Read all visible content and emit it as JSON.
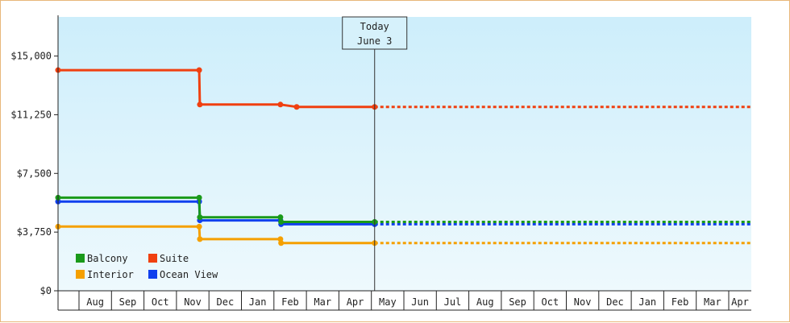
{
  "chart_data": {
    "type": "line",
    "title": "",
    "xlabel": "",
    "ylabel": "",
    "ylim": [
      0,
      17500
    ],
    "y_ticks": [
      0,
      3750,
      7500,
      11250,
      15000
    ],
    "y_tick_labels": [
      "$0",
      "$3,750",
      "$7,500",
      "$11,250",
      "$15,000"
    ],
    "x_ticks": [
      "Aug",
      "Sep",
      "Oct",
      "Nov",
      "Dec",
      "Jan",
      "Feb",
      "Mar",
      "Apr",
      "May",
      "Jun",
      "Jul",
      "Aug",
      "Sep",
      "Oct",
      "Nov",
      "Dec",
      "Jan",
      "Feb",
      "Mar",
      "Apr"
    ],
    "step": true,
    "today": {
      "line1": "Today",
      "line2": "June 3",
      "month_index": 9.1
    },
    "background": {
      "top": "#cdeefb",
      "bottom": "#eef9fd"
    },
    "legend": {
      "placement": "bottom-left",
      "columns": 2
    },
    "series": [
      {
        "name": "Balcony",
        "color": "#1a9a1a",
        "points": [
          [
            -1.0,
            5950
          ],
          [
            3.7,
            5950
          ],
          [
            3.72,
            4700
          ],
          [
            6.2,
            4700
          ],
          [
            6.22,
            4400
          ],
          [
            9.1,
            4400
          ]
        ],
        "projected_value": 4400
      },
      {
        "name": "Suite",
        "color": "#f04010",
        "points": [
          [
            -1.0,
            14100
          ],
          [
            3.7,
            14100
          ],
          [
            3.72,
            11900
          ],
          [
            6.2,
            11900
          ],
          [
            6.7,
            11750
          ],
          [
            9.1,
            11750
          ]
        ],
        "projected_value": 11750
      },
      {
        "name": "Interior",
        "color": "#f5a000",
        "points": [
          [
            -1.0,
            4100
          ],
          [
            3.7,
            4100
          ],
          [
            3.72,
            3300
          ],
          [
            6.2,
            3300
          ],
          [
            6.22,
            3050
          ],
          [
            9.1,
            3050
          ]
        ],
        "projected_value": 3050
      },
      {
        "name": "Ocean View",
        "color": "#1040ee",
        "points": [
          [
            -1.0,
            5700
          ],
          [
            3.7,
            5700
          ],
          [
            3.72,
            4500
          ],
          [
            6.2,
            4500
          ],
          [
            6.22,
            4250
          ],
          [
            9.1,
            4250
          ]
        ],
        "projected_value": 4250
      }
    ]
  }
}
